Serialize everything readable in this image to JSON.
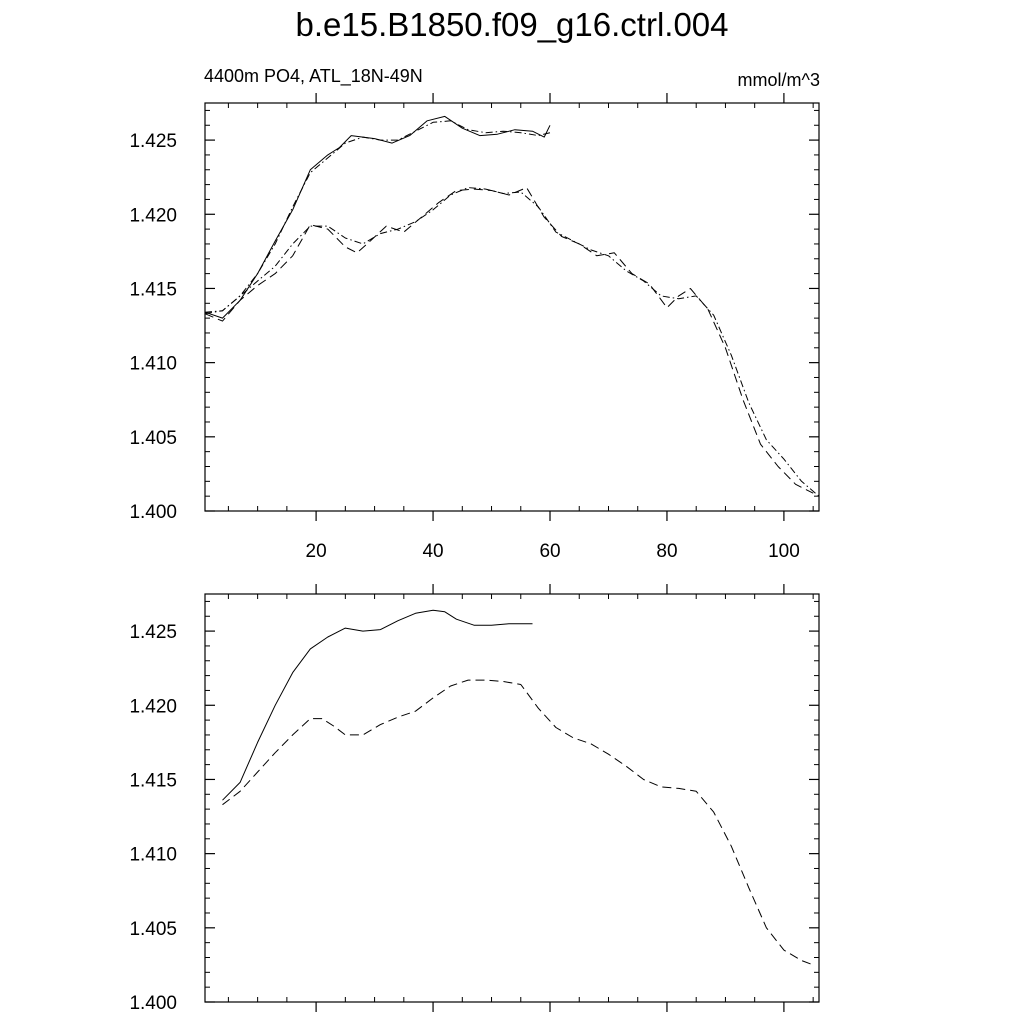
{
  "title": "b.e15.B1850.f09_g16.ctrl.004",
  "subtitle_left": "4400m PO4, ATL_18N-49N",
  "subtitle_right": "mmol/m^3",
  "chart_data": [
    {
      "type": "line",
      "panel": "top",
      "xlim": [
        1,
        106
      ],
      "ylim": [
        1.4,
        1.4275
      ],
      "x_major_ticks": [
        20,
        40,
        60,
        80,
        100
      ],
      "x_tick_labels": [
        "20",
        "40",
        "60",
        "80",
        "100"
      ],
      "y_major_ticks": [
        1.4,
        1.405,
        1.41,
        1.415,
        1.42,
        1.425
      ],
      "y_tick_labels": [
        "1.400",
        "1.405",
        "1.410",
        "1.415",
        "1.420",
        "1.425"
      ],
      "series": [
        {
          "style": "solid",
          "x": [
            1,
            4,
            7,
            10,
            13,
            16,
            19,
            22,
            24,
            26,
            28,
            30,
            33,
            36,
            39,
            42,
            45,
            48,
            51,
            54,
            57,
            59,
            60
          ],
          "y": [
            1.4134,
            1.413,
            1.4142,
            1.416,
            1.4182,
            1.4203,
            1.423,
            1.424,
            1.4245,
            1.4253,
            1.4252,
            1.4251,
            1.4248,
            1.4253,
            1.4263,
            1.4266,
            1.4258,
            1.4253,
            1.4254,
            1.4257,
            1.4256,
            1.4252,
            1.426
          ]
        },
        {
          "style": "dot-dash",
          "x": [
            1,
            4,
            7,
            10,
            13,
            16,
            19,
            22,
            25,
            28,
            31,
            34,
            37,
            40,
            43,
            46,
            49,
            52,
            55,
            58,
            60
          ],
          "y": [
            1.4134,
            1.4135,
            1.4145,
            1.416,
            1.418,
            1.4205,
            1.4228,
            1.4238,
            1.4248,
            1.4252,
            1.425,
            1.425,
            1.4256,
            1.4262,
            1.4263,
            1.4257,
            1.4255,
            1.4256,
            1.4255,
            1.4253,
            1.4255
          ]
        },
        {
          "style": "dashed",
          "x": [
            1,
            4,
            7,
            10,
            13,
            16,
            19,
            22,
            25,
            27,
            29,
            32,
            35,
            38,
            41,
            44,
            47,
            50,
            53,
            56,
            59,
            62,
            65,
            68,
            71,
            74,
            77,
            80,
            82,
            84,
            87,
            90,
            93,
            96,
            99,
            102,
            105
          ],
          "y": [
            1.4133,
            1.4128,
            1.4142,
            1.4152,
            1.416,
            1.4172,
            1.4193,
            1.419,
            1.4178,
            1.4174,
            1.4181,
            1.4192,
            1.4188,
            1.4198,
            1.4208,
            1.4216,
            1.4217,
            1.4216,
            1.4213,
            1.4218,
            1.4198,
            1.4185,
            1.418,
            1.4172,
            1.4174,
            1.416,
            1.4153,
            1.4137,
            1.4145,
            1.415,
            1.4136,
            1.411,
            1.4075,
            1.4045,
            1.403,
            1.4018,
            1.4012
          ]
        },
        {
          "style": "dot-dash",
          "x": [
            1,
            4,
            7,
            10,
            13,
            16,
            19,
            22,
            25,
            28,
            31,
            34,
            37,
            40,
            43,
            46,
            49,
            52,
            55,
            58,
            61,
            64,
            67,
            70,
            73,
            76,
            79,
            82,
            85,
            88,
            91,
            94,
            97,
            100,
            103,
            106
          ],
          "y": [
            1.4133,
            1.4135,
            1.4145,
            1.4155,
            1.4165,
            1.418,
            1.4192,
            1.4192,
            1.4184,
            1.418,
            1.4187,
            1.419,
            1.4195,
            1.4203,
            1.4213,
            1.4218,
            1.4217,
            1.4214,
            1.4215,
            1.4205,
            1.4188,
            1.4182,
            1.4176,
            1.4172,
            1.4162,
            1.4155,
            1.4145,
            1.4143,
            1.4145,
            1.4132,
            1.4105,
            1.4073,
            1.4048,
            1.4035,
            1.402,
            1.401
          ]
        }
      ]
    },
    {
      "type": "line",
      "panel": "bottom",
      "xlim": [
        1,
        106
      ],
      "ylim": [
        1.4,
        1.4275
      ],
      "x_major_ticks": [
        20,
        40,
        60,
        80,
        100
      ],
      "x_tick_labels": [],
      "y_major_ticks": [
        1.4,
        1.405,
        1.41,
        1.415,
        1.42,
        1.425
      ],
      "y_tick_labels": [
        "1.400",
        "1.405",
        "1.410",
        "1.415",
        "1.420",
        "1.425"
      ],
      "series": [
        {
          "style": "solid",
          "x": [
            4,
            7,
            10,
            13,
            16,
            19,
            22,
            25,
            28,
            31,
            34,
            37,
            40,
            42,
            44,
            47,
            50,
            53,
            56,
            57
          ],
          "y": [
            1.4136,
            1.4148,
            1.4175,
            1.42,
            1.4222,
            1.4238,
            1.4246,
            1.4252,
            1.425,
            1.4251,
            1.4257,
            1.4262,
            1.4264,
            1.4263,
            1.4258,
            1.4254,
            1.4254,
            1.4255,
            1.4255,
            1.4255
          ]
        },
        {
          "style": "dashed",
          "x": [
            4,
            7,
            10,
            13,
            16,
            19,
            21,
            23,
            25,
            28,
            31,
            34,
            37,
            40,
            43,
            46,
            49,
            52,
            55,
            58,
            61,
            64,
            67,
            70,
            73,
            76,
            79,
            82,
            85,
            88,
            91,
            94,
            97,
            100,
            103,
            105
          ],
          "y": [
            1.4133,
            1.4142,
            1.4155,
            1.4168,
            1.418,
            1.4191,
            1.4191,
            1.4186,
            1.418,
            1.418,
            1.4187,
            1.4192,
            1.4196,
            1.4205,
            1.4213,
            1.4217,
            1.4217,
            1.4216,
            1.4214,
            1.4198,
            1.4185,
            1.4178,
            1.4174,
            1.4167,
            1.4159,
            1.415,
            1.4145,
            1.4144,
            1.4142,
            1.4128,
            1.4105,
            1.4077,
            1.405,
            1.4035,
            1.4028,
            1.4025
          ]
        }
      ]
    }
  ]
}
